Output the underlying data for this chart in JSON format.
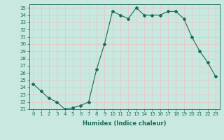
{
  "x": [
    0,
    1,
    2,
    3,
    4,
    5,
    6,
    7,
    8,
    9,
    10,
    11,
    12,
    13,
    14,
    15,
    16,
    17,
    18,
    19,
    20,
    21,
    22,
    23
  ],
  "y": [
    24.5,
    23.5,
    22.5,
    22.0,
    21.0,
    21.2,
    21.5,
    22.0,
    26.5,
    30.0,
    34.5,
    34.0,
    33.5,
    35.0,
    34.0,
    34.0,
    34.0,
    34.5,
    34.5,
    33.5,
    31.0,
    29.0,
    27.5,
    25.5
  ],
  "line_color": "#1a6b5a",
  "marker": "D",
  "marker_size": 2.0,
  "xlabel": "Humidex (Indice chaleur)",
  "xlim": [
    -0.5,
    23.5
  ],
  "ylim": [
    21,
    35.5
  ],
  "yticks": [
    21,
    22,
    23,
    24,
    25,
    26,
    27,
    28,
    29,
    30,
    31,
    32,
    33,
    34,
    35
  ],
  "xticks": [
    0,
    1,
    2,
    3,
    4,
    5,
    6,
    7,
    8,
    9,
    10,
    11,
    12,
    13,
    14,
    15,
    16,
    17,
    18,
    19,
    20,
    21,
    22,
    23
  ],
  "bg_color": "#c8e8e0",
  "grid_color": "#e8c8c8",
  "tick_color": "#1a6b5a",
  "label_color": "#1a6b5a",
  "xlabel_fontsize": 6.0,
  "tick_fontsize": 5.0
}
